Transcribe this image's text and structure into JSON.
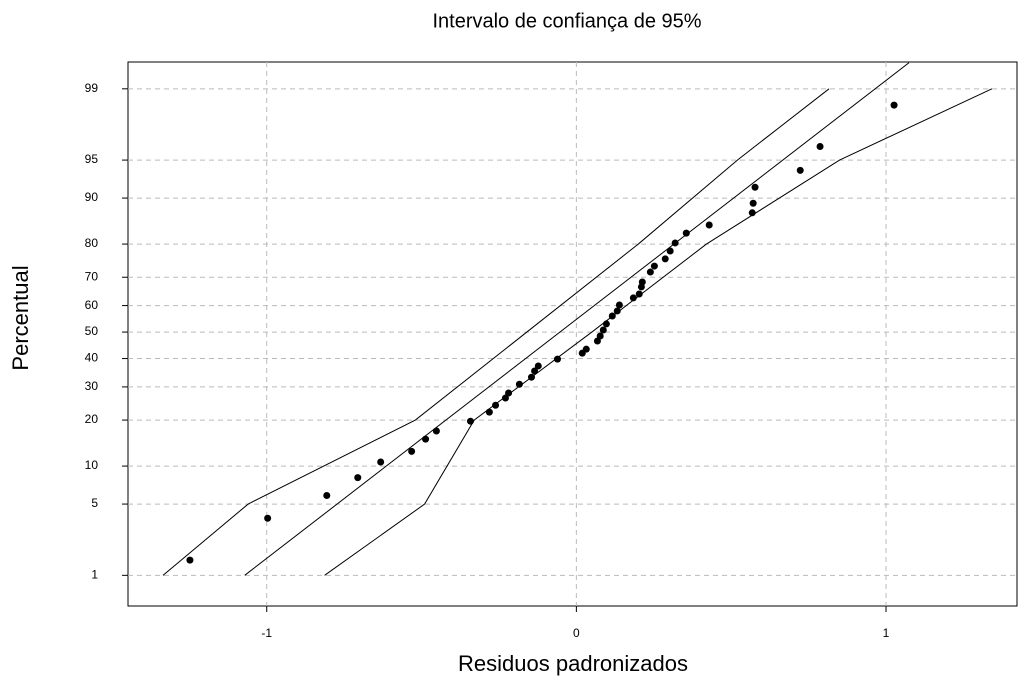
{
  "chart_data": {
    "type": "scatter",
    "title": "Intervalo de confiança de 95%",
    "x_label": "Residuos padronizados",
    "y_label": "Percentual",
    "yscale": "probability",
    "grid": true,
    "xlim": [
      -1.448,
      1.423
    ],
    "ylim": [
      0.44,
      99.51
    ],
    "xticks": [
      -1,
      0,
      1
    ],
    "yticks": [
      1,
      5,
      10,
      20,
      30,
      40,
      50,
      60,
      70,
      80,
      90,
      95,
      99
    ],
    "series": [
      {
        "mode": "markers",
        "color": "#000000",
        "x": [
          -1.248,
          -0.997,
          -0.806,
          -0.706,
          -0.632,
          -0.532,
          -0.487,
          -0.452,
          -0.342,
          -0.281,
          -0.261,
          -0.229,
          -0.219,
          -0.184,
          -0.145,
          -0.135,
          -0.123,
          -0.061,
          0.019,
          0.032,
          0.068,
          0.077,
          0.087,
          0.097,
          0.116,
          0.132,
          0.139,
          0.184,
          0.203,
          0.21,
          0.213,
          0.239,
          0.252,
          0.287,
          0.303,
          0.319,
          0.355,
          0.429,
          0.568,
          0.571,
          0.577,
          0.723,
          0.787,
          1.026
        ],
        "values": [
          1.46,
          3.75,
          5.9,
          8.2,
          10.7,
          12.7,
          15.3,
          17.2,
          19.7,
          22.2,
          24.2,
          26.4,
          28.0,
          30.9,
          33.3,
          35.5,
          37.3,
          39.8,
          42.0,
          43.5,
          46.6,
          48.5,
          50.8,
          53.1,
          56.1,
          58.0,
          60.2,
          62.8,
          64.2,
          66.7,
          68.4,
          71.7,
          73.6,
          75.8,
          78.1,
          80.3,
          82.8,
          84.7,
          87.3,
          89.1,
          91.7,
          93.9,
          96.2,
          98.5
        ]
      },
      {
        "mode": "line",
        "color": "#000000",
        "x": [
          -1.071,
          1.074
        ],
        "values": [
          1,
          99.5
        ]
      },
      {
        "mode": "line",
        "color": "#000000",
        "x": [
          -1.335,
          -1.06,
          -0.52,
          -0.16,
          0.2,
          0.52,
          0.816
        ],
        "values": [
          1,
          5,
          20,
          50,
          80,
          95,
          99
        ]
      },
      {
        "mode": "line",
        "color": "#000000",
        "x": [
          -0.813,
          -0.49,
          -0.33,
          0.05,
          0.42,
          0.85,
          1.342
        ],
        "values": [
          1,
          5,
          20,
          50,
          80,
          95,
          99
        ]
      }
    ]
  }
}
